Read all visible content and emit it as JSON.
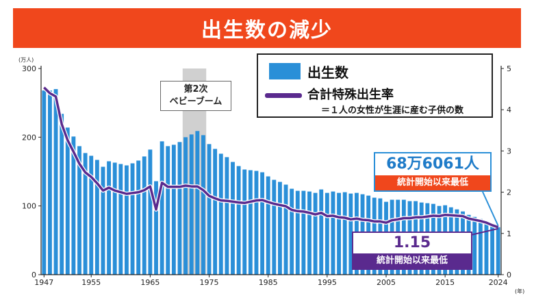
{
  "title": "出生数の減少",
  "legend": {
    "births_label": "出生数",
    "tfr_label": "合計特殊出生率",
    "tfr_note": "＝１人の女性が生涯に産む子供の数"
  },
  "annotations": {
    "boom_line1": "第2次",
    "boom_line2": "ベビーブーム",
    "births_value": "68万6061人",
    "births_note": "統計開始以来最低",
    "tfr_value": "1.15",
    "tfr_note": "統計開始以来最低"
  },
  "colors": {
    "title_bg": "#f0471c",
    "bar": "#2a8fd8",
    "line": "#5a2a8e",
    "shade": "#c8c8c8"
  },
  "chart_data": {
    "type": "bar",
    "left_axis_unit": "(万人)",
    "right_axis_unit": "",
    "x_axis_unit": "(年)",
    "ylim_left": [
      0,
      300
    ],
    "ylim_right": [
      0,
      5
    ],
    "left_ticks": [
      "300",
      "200",
      "100",
      "0"
    ],
    "right_ticks": [
      "5",
      "4",
      "3",
      "2",
      "1",
      "0"
    ],
    "x_ticks": [
      "1947",
      "1955",
      "1965",
      "1975",
      "1985",
      "1995",
      "2005",
      "2015",
      "2024"
    ],
    "x": [
      1947,
      1948,
      1949,
      1950,
      1951,
      1952,
      1953,
      1954,
      1955,
      1956,
      1957,
      1958,
      1959,
      1960,
      1961,
      1962,
      1963,
      1964,
      1965,
      1966,
      1967,
      1968,
      1969,
      1970,
      1971,
      1972,
      1973,
      1974,
      1975,
      1976,
      1977,
      1978,
      1979,
      1980,
      1981,
      1982,
      1983,
      1984,
      1985,
      1986,
      1987,
      1988,
      1989,
      1990,
      1991,
      1992,
      1993,
      1994,
      1995,
      1996,
      1997,
      1998,
      1999,
      2000,
      2001,
      2002,
      2003,
      2004,
      2005,
      2006,
      2007,
      2008,
      2009,
      2010,
      2011,
      2012,
      2013,
      2014,
      2015,
      2016,
      2017,
      2018,
      2019,
      2020,
      2021,
      2022,
      2023,
      2024
    ],
    "shaded_period": [
      1971,
      1974
    ],
    "series": [
      {
        "name": "出生数",
        "type": "bar",
        "axis": "left",
        "values": [
          268,
          268,
          270,
          234,
          214,
          201,
          187,
          177,
          173,
          167,
          157,
          165,
          163,
          161,
          159,
          162,
          166,
          172,
          182,
          136,
          194,
          187,
          189,
          193,
          200,
          204,
          209,
          203,
          190,
          183,
          176,
          171,
          164,
          158,
          153,
          152,
          151,
          149,
          143,
          138,
          135,
          131,
          125,
          122,
          122,
          121,
          119,
          124,
          119,
          121,
          119,
          120,
          118,
          119,
          117,
          115,
          112,
          111,
          106,
          109,
          109,
          109,
          107,
          107,
          105,
          104,
          103,
          100,
          101,
          98,
          95,
          92,
          87,
          84,
          81,
          77,
          73,
          69
        ]
      },
      {
        "name": "合計特殊出生率",
        "type": "line",
        "axis": "right",
        "values": [
          4.54,
          4.4,
          4.32,
          3.65,
          3.26,
          2.98,
          2.69,
          2.48,
          2.37,
          2.22,
          2.04,
          2.11,
          2.04,
          2.0,
          1.96,
          1.98,
          2.0,
          2.05,
          2.14,
          1.58,
          2.23,
          2.13,
          2.13,
          2.13,
          2.16,
          2.14,
          2.14,
          2.05,
          1.91,
          1.85,
          1.8,
          1.79,
          1.77,
          1.75,
          1.74,
          1.77,
          1.8,
          1.81,
          1.76,
          1.72,
          1.69,
          1.66,
          1.57,
          1.54,
          1.53,
          1.5,
          1.46,
          1.5,
          1.42,
          1.43,
          1.39,
          1.38,
          1.34,
          1.36,
          1.33,
          1.32,
          1.29,
          1.29,
          1.26,
          1.32,
          1.34,
          1.37,
          1.37,
          1.39,
          1.39,
          1.41,
          1.43,
          1.42,
          1.45,
          1.44,
          1.43,
          1.42,
          1.36,
          1.33,
          1.3,
          1.26,
          1.2,
          1.15
        ]
      }
    ]
  }
}
